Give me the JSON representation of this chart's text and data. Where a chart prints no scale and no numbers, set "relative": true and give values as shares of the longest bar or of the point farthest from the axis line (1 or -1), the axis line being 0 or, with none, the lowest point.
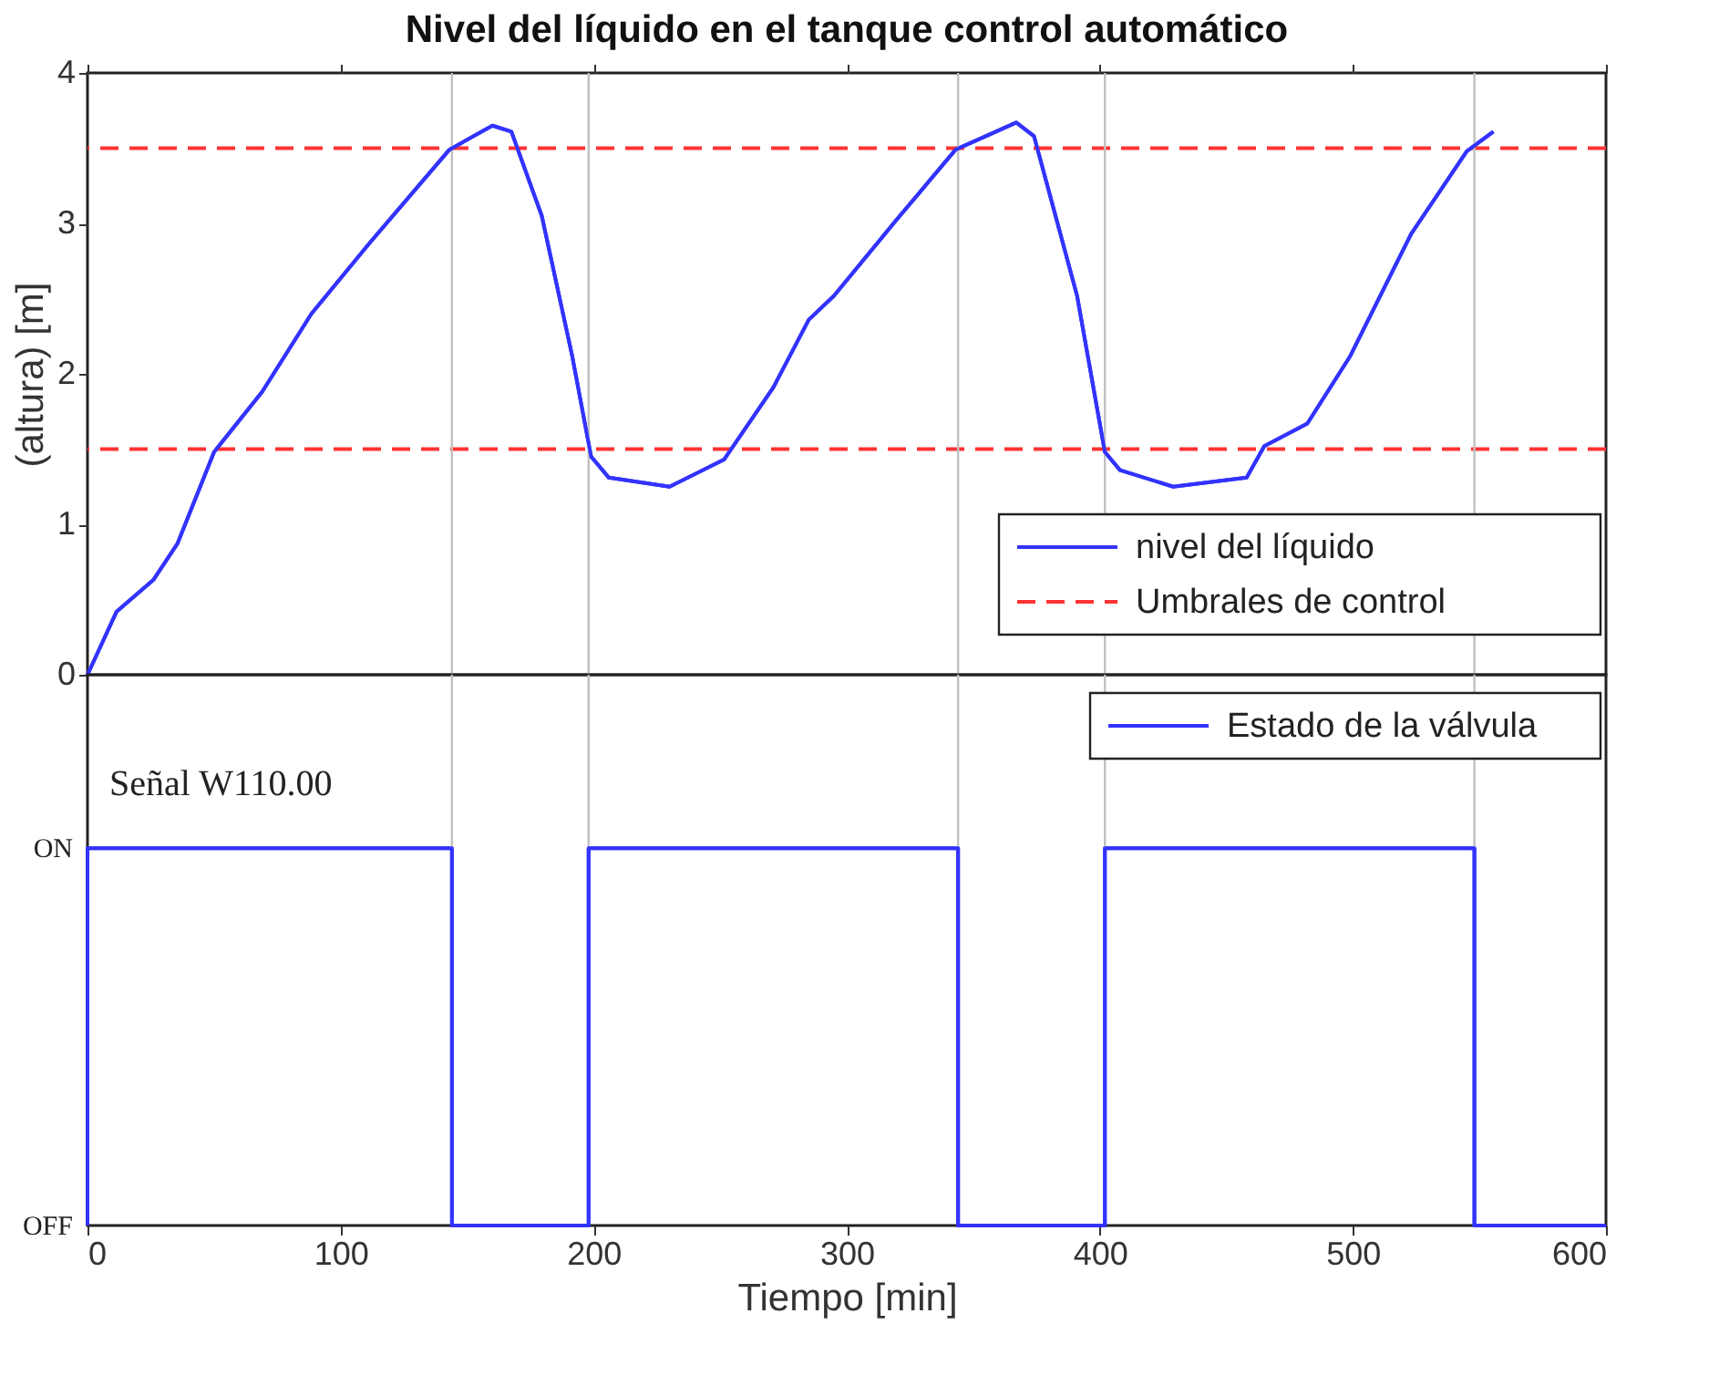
{
  "chart_data": [
    {
      "type": "line",
      "title": "Nivel del líquido en el tanque control automático",
      "ylabel": "(altura) [m]",
      "xlim": [
        0,
        600
      ],
      "xticks": [
        {
          "value": 0,
          "label": null
        },
        {
          "value": 100,
          "label": null
        },
        {
          "value": 200,
          "label": null
        },
        {
          "value": 300,
          "label": null
        },
        {
          "value": 400,
          "label": null
        },
        {
          "value": 500,
          "label": null
        },
        {
          "value": 600,
          "label": null
        }
      ],
      "ylim": [
        0,
        4
      ],
      "yticks": [
        0,
        1,
        2,
        3,
        4
      ],
      "tick_labels": "y",
      "grid": false,
      "legend": "bottom right",
      "line_style": "solid",
      "marker": "none",
      "series": [
        {
          "name": "nivel del líquido",
          "color": "#3333ff",
          "x": [
            0,
            11.5,
            26,
            35.5,
            50,
            69,
            88.5,
            112,
            143,
            160,
            167.5,
            179.5,
            191.5,
            199,
            206,
            230,
            251.5,
            271,
            285,
            295,
            319,
            343,
            367,
            374,
            391,
            402,
            408,
            429,
            458,
            465,
            482,
            499,
            523,
            545,
            555.5
          ],
          "values": [
            0,
            0.42,
            0.63,
            0.87,
            1.48,
            1.88,
            2.4,
            2.88,
            3.49,
            3.65,
            3.61,
            3.05,
            2.12,
            1.45,
            1.31,
            1.25,
            1.43,
            1.91,
            2.36,
            2.52,
            3.01,
            3.49,
            3.67,
            3.58,
            2.52,
            1.48,
            1.36,
            1.25,
            1.31,
            1.52,
            1.67,
            2.12,
            2.93,
            3.48,
            3.61
          ]
        }
      ],
      "ref_lines": [
        {
          "axis": "y",
          "value": 3.5,
          "label": "Umbrales de control",
          "color": "#ff3333",
          "line_style": "dashed"
        },
        {
          "axis": "y",
          "value": 1.5,
          "color": "#ff3333",
          "line_style": "dashed"
        },
        {
          "axis": "x",
          "value": 144,
          "color": "#c0c0c0",
          "line_style": "solid"
        },
        {
          "axis": "x",
          "value": 198,
          "color": "#c0c0c0",
          "line_style": "solid"
        },
        {
          "axis": "x",
          "value": 344,
          "color": "#c0c0c0",
          "line_style": "solid"
        },
        {
          "axis": "x",
          "value": 402,
          "color": "#c0c0c0",
          "line_style": "solid"
        },
        {
          "axis": "x",
          "value": 548,
          "color": "#c0c0c0",
          "line_style": "solid"
        }
      ]
    },
    {
      "type": "step",
      "xlabel": "Tiempo  [min]",
      "xlim": [
        0,
        600
      ],
      "xticks": [
        0,
        100,
        200,
        300,
        400,
        500,
        600
      ],
      "relative": true,
      "grid": false,
      "legend": "top right",
      "line_style": "solid",
      "marker": "none",
      "annotations": [
        "Señal W110.00",
        "ON",
        "OFF"
      ],
      "series": [
        {
          "name": "Estado de la válvula",
          "color": "#3333ff",
          "x": [
            0,
            0,
            144,
            198,
            344,
            402,
            548,
            600
          ],
          "values": [
            0,
            1,
            0,
            1,
            0,
            1,
            0,
            0
          ]
        }
      ],
      "ref_lines": [
        {
          "axis": "x",
          "value": 144,
          "color": "#c0c0c0",
          "line_style": "solid"
        },
        {
          "axis": "x",
          "value": 198,
          "color": "#c0c0c0",
          "line_style": "solid"
        },
        {
          "axis": "x",
          "value": 344,
          "color": "#c0c0c0",
          "line_style": "solid"
        },
        {
          "axis": "x",
          "value": 402,
          "color": "#c0c0c0",
          "line_style": "solid"
        },
        {
          "axis": "x",
          "value": 548,
          "color": "#c0c0c0",
          "line_style": "solid"
        }
      ]
    }
  ]
}
